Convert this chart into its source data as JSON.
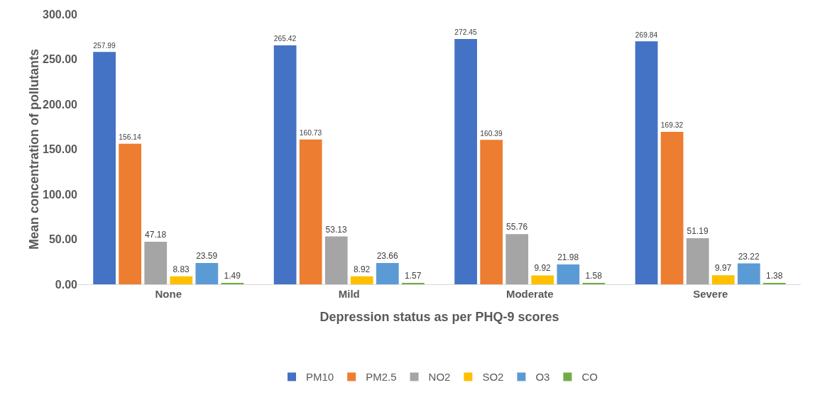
{
  "chart_data": {
    "type": "bar",
    "xlabel": "Depression status as per PHQ-9 scores",
    "ylabel": "Mean concentration of pollutants",
    "categories": [
      "None",
      "Mild",
      "Moderate",
      "Severe"
    ],
    "series": [
      {
        "name": "PM10",
        "color": "#4472c4",
        "values": [
          257.99,
          265.42,
          272.45,
          269.84
        ]
      },
      {
        "name": "PM2.5",
        "color": "#ed7d31",
        "values": [
          156.14,
          160.73,
          160.39,
          169.32
        ]
      },
      {
        "name": "NO2",
        "color": "#a5a5a5",
        "values": [
          47.18,
          53.13,
          55.76,
          51.19
        ]
      },
      {
        "name": "SO2",
        "color": "#ffc000",
        "values": [
          8.83,
          8.92,
          9.92,
          9.97
        ]
      },
      {
        "name": "O3",
        "color": "#5b9bd5",
        "values": [
          23.59,
          23.66,
          21.98,
          23.22
        ]
      },
      {
        "name": "CO",
        "color": "#70ad47",
        "values": [
          1.49,
          1.57,
          1.58,
          1.38
        ]
      }
    ],
    "ylim": [
      0,
      300
    ],
    "yticks": [
      {
        "value": 0,
        "label": "0.00"
      },
      {
        "value": 50,
        "label": "50.00"
      },
      {
        "value": 100,
        "label": "100.00"
      },
      {
        "value": 150,
        "label": "150.00"
      },
      {
        "value": 200,
        "label": "200.00"
      },
      {
        "value": 250,
        "label": "250.00"
      },
      {
        "value": 300,
        "label": "300.00"
      }
    ],
    "data_labels": true,
    "grid": false,
    "legend": "bottom"
  }
}
